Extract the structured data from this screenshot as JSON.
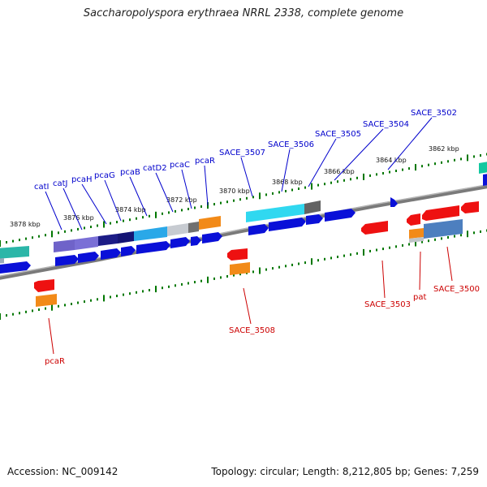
{
  "title": "Saccharopolyspora erythraea NRRL 2338, complete genome",
  "accession": "Accession: NC_009142",
  "summary": "Topology: circular; Length: 8,212,805 bp; Genes: 7,259",
  "colors": {
    "forward_label": "#0000cc",
    "reverse_label": "#cc0000",
    "backbone": "#808080",
    "tick": "#007700"
  },
  "kbp_labels": [
    "3878 kbp",
    "3876 kbp",
    "3874 kbp",
    "3872 kbp",
    "3870 kbp",
    "3868 kbp",
    "3866 kbp",
    "3864 kbp",
    "3862 kbp"
  ],
  "forward_gene_labels": [
    "catI",
    "catJ",
    "pcaH",
    "pcaG",
    "pcaB",
    "catD2",
    "pcaC",
    "pcaR",
    "SACE_3507",
    "SACE_3506",
    "SACE_3505",
    "SACE_3504",
    "SACE_3502"
  ],
  "reverse_gene_labels": [
    "pcaR",
    "SACE_3508",
    "SACE_3503",
    "pat",
    "SACE_3500"
  ]
}
